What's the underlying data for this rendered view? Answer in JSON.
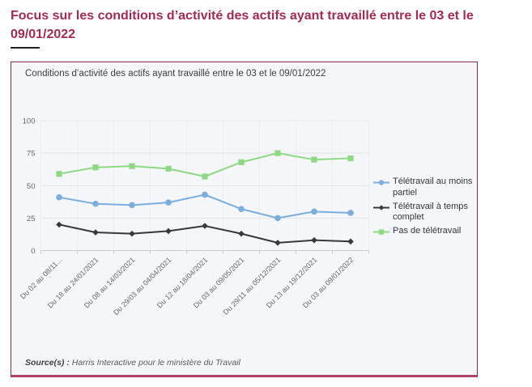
{
  "page": {
    "title": "Focus sur les conditions d’activité des actifs ayant travaillé entre le 03 et le 09/01/2022"
  },
  "card": {
    "title": "Conditions d’activité des actifs ayant travaillé entre le 03 et le 09/01/2022",
    "source_label": "Source(s) :",
    "source_text": "Harris Interactive pour le ministère du Travail"
  },
  "colors": {
    "heading": "#a42a55",
    "card_border": "#8e2a4d",
    "card_border_bottom": "#b0436a",
    "card_background": "#f5f6f9",
    "grid_line": "#e3e5e9",
    "axis_line": "#c8ccd0",
    "axis_label": "#666666"
  },
  "chart_data": {
    "type": "line",
    "title": "Conditions d’activité des actifs ayant travaillé entre le 03 et le 09/01/2022",
    "categories": [
      "Du 02 au 08/11...",
      "Du 18 au 24/01/2021",
      "Du 08 au 14/03/2021",
      "Du 29/03 au 04/04/2021",
      "Du 12 au 18/04/2021",
      "Du 03 au 09/05/2021",
      "Du 29/11 au 05/12/2021",
      "Du 13 au 19/12/2021",
      "Du 03 au 09/01/2022"
    ],
    "series": [
      {
        "name": "Télétravail au moins partiel",
        "color": "#79aede",
        "marker": "circle",
        "values": [
          41,
          36,
          35,
          37,
          43,
          32,
          25,
          30,
          29
        ]
      },
      {
        "name": "Télétravail à temps complet",
        "color": "#39393d",
        "marker": "diamond",
        "values": [
          20,
          14,
          13,
          15,
          19,
          13,
          6,
          8,
          7
        ]
      },
      {
        "name": "Pas de télétravail",
        "color": "#8ed983",
        "marker": "square",
        "values": [
          59,
          64,
          65,
          63,
          57,
          68,
          75,
          70,
          71
        ]
      }
    ],
    "xlabel": "",
    "ylabel": "",
    "ylim": [
      0,
      100
    ],
    "yticks": [
      0,
      25,
      50,
      75,
      100
    ],
    "grid": true,
    "legend_position": "right"
  }
}
